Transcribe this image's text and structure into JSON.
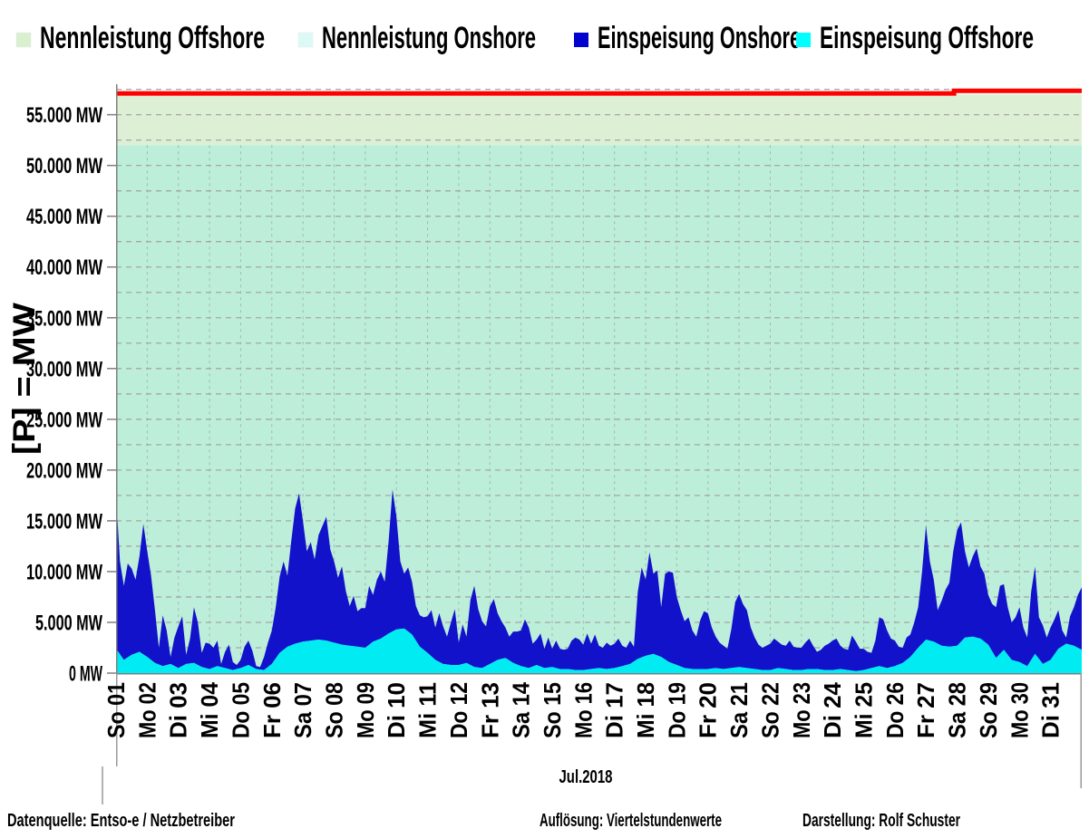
{
  "legend": {
    "items": [
      {
        "label": "Nennleistung Offshore",
        "color": "#d9f0cf"
      },
      {
        "label": "Nennleistung Onshore",
        "color": "#dcfaf5"
      },
      {
        "label": "Einspeisung Onshore",
        "color": "#0202cf"
      },
      {
        "label": "Einspeisung Offshore",
        "color": "#00ffff"
      }
    ]
  },
  "y_axis": {
    "title": "[P] = MW",
    "tick_values": [
      0,
      5000,
      10000,
      15000,
      20000,
      25000,
      30000,
      35000,
      40000,
      45000,
      50000,
      55000
    ],
    "tick_labels": [
      "0 MW",
      "5.000 MW",
      "10.000 MW",
      "15.000 MW",
      "20.000 MW",
      "25.000 MW",
      "30.000 MW",
      "35.000 MW",
      "40.000 MW",
      "45.000 MW",
      "50.000 MW",
      "55.000 MW"
    ]
  },
  "x_axis": {
    "title": "Jul.2018",
    "day_labels": [
      "So 01",
      "Mo 02",
      "Di 03",
      "Mi 04",
      "Do 05",
      "Fr 06",
      "Sa 07",
      "So 08",
      "Mo 09",
      "Di 10",
      "Mi 11",
      "Do 12",
      "Fr 13",
      "Sa 14",
      "So 15",
      "Mo 16",
      "Di 17",
      "Mi 18",
      "Do 19",
      "Fr 20",
      "Sa 21",
      "So 22",
      "Mo 23",
      "Di 24",
      "Mi 25",
      "Do 26",
      "Fr 27",
      "Sa 28",
      "So 29",
      "Mo 30",
      "Di 31"
    ]
  },
  "footer": {
    "source": "Datenquelle:  Entso-e  / Netzbetreiber",
    "resolution": "Auflösung: Viertelstundenwerte",
    "credit": "Darstellung: Rolf Schuster"
  },
  "chart_data": {
    "type": "area",
    "stacked": true,
    "title": "",
    "xlabel": "Jul.2018",
    "ylabel": "[P] = MW",
    "ylim_mw": [
      0,
      58000
    ],
    "x_range_days": [
      0,
      31
    ],
    "gridline_step_mw": 2500,
    "capacity_bands": {
      "nennleistung_onshore_mw": 52000,
      "nennleistung_total_mw": 57000,
      "onshore_band_color": "#bdeeda",
      "offshore_band_color": "#ddf0d5"
    },
    "capacity_total_line": {
      "color": "#fe0000",
      "level1_mw": 57100,
      "level2_mw": 57350,
      "step_day": 26.9
    },
    "series": [
      {
        "name": "Einspeisung Offshore",
        "color": "#00ecf2",
        "samples_per_day": 4,
        "values_mw": [
          2400,
          1300,
          1800,
          2100,
          1600,
          1000,
          700,
          900,
          500,
          900,
          1000,
          600,
          400,
          700,
          500,
          300,
          500,
          800,
          400,
          300,
          900,
          2000,
          2600,
          2900,
          3100,
          3200,
          3300,
          3200,
          3000,
          2800,
          2700,
          2600,
          2500,
          3100,
          3400,
          3900,
          4300,
          4400,
          3800,
          2600,
          2000,
          1300,
          900,
          800,
          800,
          1000,
          600,
          500,
          900,
          1300,
          1500,
          1000,
          700,
          500,
          800,
          500,
          600,
          400,
          400,
          300,
          300,
          400,
          500,
          400,
          500,
          700,
          900,
          1400,
          1700,
          1900,
          1600,
          1100,
          800,
          500,
          400,
          400,
          400,
          500,
          400,
          500,
          600,
          500,
          400,
          300,
          300,
          500,
          400,
          300,
          300,
          400,
          400,
          300,
          300,
          400,
          300,
          200,
          300,
          500,
          700,
          500,
          700,
          1000,
          1600,
          2500,
          3300,
          3100,
          2700,
          2600,
          2700,
          3500,
          3600,
          3400,
          2800,
          1500,
          2300,
          1300,
          1100,
          700,
          1900,
          900,
          1300,
          2400,
          2900,
          2700,
          2300
        ]
      },
      {
        "name": "Einspeisung Onshore",
        "color": "#1212cb",
        "samples_per_day": 8,
        "note": "values are the stacked top edge (Offshore + Onshore feed-in)",
        "stack_top_values_mw": [
          17500,
          11000,
          8600,
          10800,
          10300,
          9200,
          11500,
          14700,
          12000,
          9600,
          6200,
          2500,
          5700,
          4200,
          1600,
          3500,
          4600,
          5600,
          1800,
          3400,
          6500,
          5000,
          2000,
          3000,
          2900,
          2500,
          3200,
          900,
          2100,
          2800,
          1100,
          800,
          1300,
          2600,
          3200,
          2200,
          700,
          600,
          1600,
          3000,
          4200,
          6500,
          9500,
          11000,
          9600,
          13000,
          16200,
          17700,
          15000,
          12000,
          12900,
          11200,
          13600,
          14500,
          15400,
          12200,
          11000,
          9400,
          10500,
          8100,
          6600,
          7600,
          6100,
          6400,
          6400,
          8600,
          7700,
          9200,
          10000,
          9000,
          13000,
          18100,
          15400,
          11000,
          9800,
          10400,
          9000,
          6600,
          5700,
          5500,
          5600,
          6200,
          4500,
          5900,
          4600,
          3600,
          5000,
          6300,
          3000,
          4800,
          3600,
          7200,
          8600,
          6300,
          5100,
          4600,
          6600,
          7300,
          5900,
          5100,
          4500,
          3600,
          4100,
          4100,
          4200,
          5300,
          4500,
          2900,
          3300,
          3900,
          2400,
          3500,
          2400,
          3200,
          2400,
          2300,
          2400,
          3200,
          3500,
          3300,
          2800,
          3900,
          2900,
          3800,
          2700,
          2500,
          3000,
          2700,
          2900,
          3400,
          2700,
          2500,
          3200,
          2600,
          8000,
          10400,
          9200,
          11900,
          9800,
          10100,
          6500,
          9800,
          10000,
          9900,
          7500,
          6200,
          5100,
          5500,
          4200,
          3600,
          5200,
          6100,
          5900,
          4500,
          3600,
          3000,
          2700,
          2400,
          4300,
          7000,
          7800,
          6800,
          6200,
          4500,
          3500,
          2800,
          2500,
          2700,
          2900,
          3400,
          3100,
          2800,
          2700,
          3200,
          2600,
          2500,
          2500,
          3000,
          3400,
          2700,
          2100,
          2300,
          2700,
          2900,
          3200,
          3400,
          2700,
          2400,
          2300,
          3700,
          3100,
          2400,
          2400,
          2100,
          2000,
          3200,
          5500,
          5300,
          4200,
          3400,
          3200,
          2600,
          2500,
          3500,
          3800,
          5000,
          6500,
          10000,
          14550,
          11000,
          9200,
          6200,
          7100,
          8200,
          8900,
          12000,
          14100,
          14850,
          12000,
          10400,
          11500,
          12300,
          10500,
          9800,
          7700,
          6800,
          6500,
          8600,
          8750,
          6500,
          5000,
          5500,
          6500,
          4500,
          3500,
          8000,
          10500,
          5500,
          4700,
          3500,
          4500,
          5300,
          6200,
          4200,
          3500,
          5600,
          6500,
          7700,
          8450
        ]
      }
    ]
  }
}
